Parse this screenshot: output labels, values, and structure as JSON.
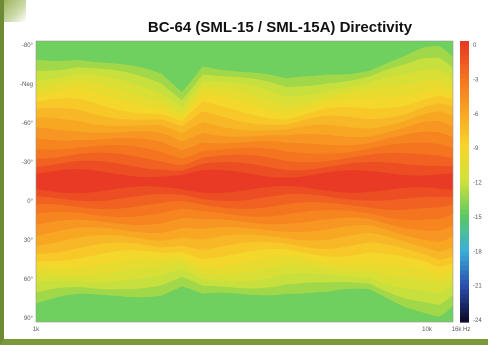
{
  "title": "BC-64 (SML-15 / SML-15A) Directivity",
  "chart_data": {
    "type": "heatmap",
    "title": "BC-64 (SML-15 / SML-15A) Directivity",
    "y_tick_labels": [
      "-80°",
      "-Neg",
      "-60°",
      "-30°",
      "0°",
      "30°",
      "60°",
      "90°"
    ],
    "x_tick_labels": [
      "1k",
      "10k",
      "16k Hz"
    ],
    "colorbar_tick_labels": [
      "0",
      "-3",
      "-6",
      "-9",
      "-12",
      "-15",
      "-18",
      "-21",
      "-24"
    ],
    "color_scale": [
      "#e83a24",
      "#f5731f",
      "#f8a523",
      "#f6d62a",
      "#cfe23a",
      "#5cc863",
      "#3ab0d8",
      "#2b4fb0",
      "#0d0d30"
    ],
    "zrange": [
      -24,
      0
    ],
    "x_profile": [
      0,
      0.1,
      0.2,
      0.3,
      0.35,
      0.4,
      0.5,
      0.6,
      0.7,
      0.8,
      0.88,
      0.93,
      0.97,
      1.0
    ],
    "beam_top_deg": [
      -78,
      -80,
      -74,
      -68,
      -58,
      -76,
      -70,
      -64,
      -70,
      -72,
      -78,
      -84,
      -86,
      -80
    ],
    "beam_bot_deg": [
      78,
      74,
      72,
      72,
      68,
      74,
      72,
      70,
      72,
      70,
      78,
      82,
      86,
      80
    ]
  }
}
